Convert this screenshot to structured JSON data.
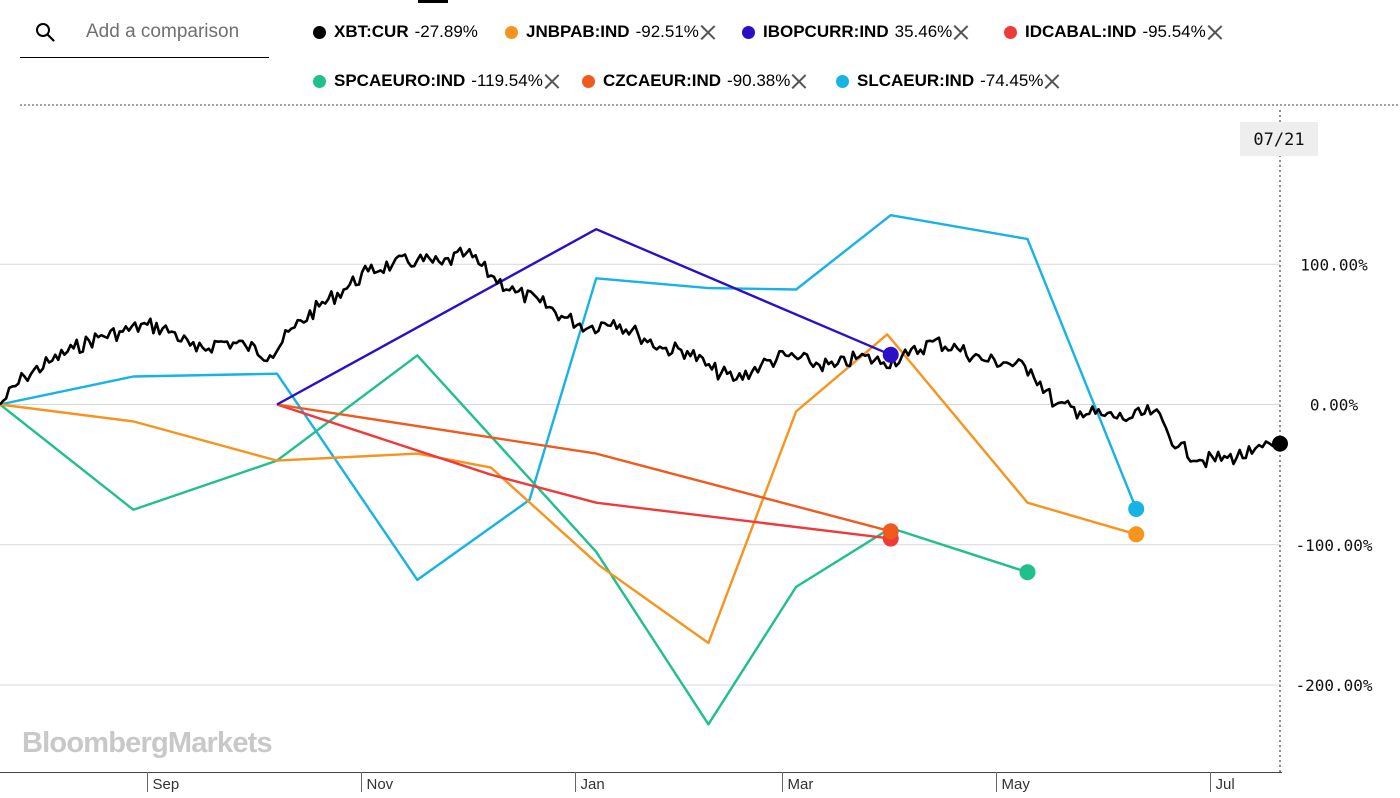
{
  "search": {
    "placeholder": "Add a comparison"
  },
  "legend": [
    {
      "symbol": "XBT:CUR",
      "change": "-27.89%",
      "color": "#000000",
      "removable": false
    },
    {
      "symbol": "JNBPAB:IND",
      "change": "-92.51%",
      "color": "#f7941d",
      "removable": true
    },
    {
      "symbol": "IBOPCURR:IND",
      "change": "35.46%",
      "color": "#2a0fc9",
      "removable": true
    },
    {
      "symbol": "IDCABAL:IND",
      "change": "-95.54%",
      "color": "#f03a3a",
      "removable": true
    },
    {
      "symbol": "SPCAEURO:IND",
      "change": "-119.54%",
      "color": "#1fc08a",
      "removable": true
    },
    {
      "symbol": "CZCAEUR:IND",
      "change": "-90.38%",
      "color": "#f05a1e",
      "removable": true
    },
    {
      "symbol": "SLCAEUR:IND",
      "change": "-74.45%",
      "color": "#17b2e6",
      "removable": true
    }
  ],
  "watermark": "BloombergMarkets",
  "chart_data": {
    "type": "line",
    "x_ticks": [
      "Sep",
      "Nov",
      "Jan",
      "Mar",
      "May",
      "Jul"
    ],
    "y_ticks": [
      {
        "value": 100,
        "label": "100.00%"
      },
      {
        "value": 0,
        "label": "0.00%"
      },
      {
        "value": -100,
        "label": "-100.00%"
      },
      {
        "value": -200,
        "label": "-200.00%"
      }
    ],
    "ylim": [
      -262,
      210
    ],
    "xlim": [
      "2017-07-21",
      "2018-07-21"
    ],
    "crosshair_label": "07/21",
    "grid": true,
    "series": [
      {
        "name": "XBT:CUR",
        "color": "#000000",
        "points": [
          [
            "2017-07-21",
            0
          ],
          [
            "2017-07-28",
            20
          ],
          [
            "2017-08-04",
            30
          ],
          [
            "2017-08-11",
            40
          ],
          [
            "2017-08-18",
            48
          ],
          [
            "2017-08-25",
            52
          ],
          [
            "2017-09-01",
            57
          ],
          [
            "2017-09-08",
            52
          ],
          [
            "2017-09-15",
            38
          ],
          [
            "2017-09-22",
            45
          ],
          [
            "2017-09-29",
            42
          ],
          [
            "2017-10-06",
            35
          ],
          [
            "2017-10-13",
            55
          ],
          [
            "2017-10-20",
            70
          ],
          [
            "2017-10-27",
            82
          ],
          [
            "2017-11-03",
            95
          ],
          [
            "2017-11-10",
            100
          ],
          [
            "2017-11-17",
            103
          ],
          [
            "2017-11-24",
            100
          ],
          [
            "2017-12-01",
            108
          ],
          [
            "2017-12-08",
            92
          ],
          [
            "2017-12-15",
            80
          ],
          [
            "2017-12-22",
            73
          ],
          [
            "2017-12-29",
            62
          ],
          [
            "2018-01-05",
            55
          ],
          [
            "2018-01-12",
            60
          ],
          [
            "2018-01-19",
            50
          ],
          [
            "2018-01-26",
            40
          ],
          [
            "2018-02-02",
            38
          ],
          [
            "2018-02-09",
            25
          ],
          [
            "2018-02-16",
            18
          ],
          [
            "2018-02-23",
            28
          ],
          [
            "2018-03-02",
            35
          ],
          [
            "2018-03-09",
            30
          ],
          [
            "2018-03-16",
            27
          ],
          [
            "2018-03-23",
            34
          ],
          [
            "2018-03-30",
            30
          ],
          [
            "2018-04-06",
            35
          ],
          [
            "2018-04-13",
            45
          ],
          [
            "2018-04-20",
            40
          ],
          [
            "2018-04-27",
            32
          ],
          [
            "2018-05-04",
            30
          ],
          [
            "2018-05-11",
            25
          ],
          [
            "2018-05-18",
            0
          ],
          [
            "2018-05-25",
            -5
          ],
          [
            "2018-06-01",
            -8
          ],
          [
            "2018-06-08",
            -10
          ],
          [
            "2018-06-15",
            -5
          ],
          [
            "2018-06-22",
            -30
          ],
          [
            "2018-06-29",
            -40
          ],
          [
            "2018-07-06",
            -38
          ],
          [
            "2018-07-13",
            -35
          ],
          [
            "2018-07-21",
            -27.89
          ]
        ]
      },
      {
        "name": "JNBPAB:IND",
        "color": "#f7941d",
        "points": [
          [
            "2017-07-21",
            0
          ],
          [
            "2017-08-28",
            -12
          ],
          [
            "2017-10-08",
            -40
          ],
          [
            "2017-11-17",
            -35
          ],
          [
            "2017-12-08",
            -45
          ],
          [
            "2018-01-08",
            -115
          ],
          [
            "2018-02-08",
            -170
          ],
          [
            "2018-03-05",
            -5
          ],
          [
            "2018-03-31",
            50
          ],
          [
            "2018-05-10",
            -70
          ],
          [
            "2018-06-10",
            -92.51
          ]
        ]
      },
      {
        "name": "IBOPCURR:IND",
        "color": "#2a0fc9",
        "points": [
          [
            "2017-10-08",
            0
          ],
          [
            "2018-01-07",
            125
          ],
          [
            "2018-04-01",
            35.46
          ]
        ]
      },
      {
        "name": "IDCABAL:IND",
        "color": "#f03a3a",
        "points": [
          [
            "2017-10-08",
            0
          ],
          [
            "2017-12-08",
            -50
          ],
          [
            "2018-01-07",
            -70
          ],
          [
            "2018-04-01",
            -95.54
          ]
        ]
      },
      {
        "name": "SPCAEURO:IND",
        "color": "#1fc08a",
        "points": [
          [
            "2017-07-21",
            0
          ],
          [
            "2017-08-28",
            -75
          ],
          [
            "2017-10-08",
            -40
          ],
          [
            "2017-11-17",
            35
          ],
          [
            "2018-01-07",
            -105
          ],
          [
            "2018-02-08",
            -228
          ],
          [
            "2018-03-05",
            -130
          ],
          [
            "2018-04-01",
            -88
          ],
          [
            "2018-05-10",
            -119.54
          ]
        ]
      },
      {
        "name": "CZCAEUR:IND",
        "color": "#f05a1e",
        "points": [
          [
            "2017-10-08",
            0
          ],
          [
            "2018-01-07",
            -35
          ],
          [
            "2018-04-01",
            -90.38
          ]
        ]
      },
      {
        "name": "SLCAEUR:IND",
        "color": "#17b2e6",
        "points": [
          [
            "2017-07-21",
            0
          ],
          [
            "2017-08-28",
            20
          ],
          [
            "2017-10-08",
            22
          ],
          [
            "2017-11-17",
            -125
          ],
          [
            "2017-12-19",
            -68
          ],
          [
            "2018-01-07",
            90
          ],
          [
            "2018-02-08",
            83
          ],
          [
            "2018-03-05",
            82
          ],
          [
            "2018-04-01",
            135
          ],
          [
            "2018-05-10",
            118
          ],
          [
            "2018-06-10",
            -74.45
          ]
        ]
      }
    ]
  }
}
